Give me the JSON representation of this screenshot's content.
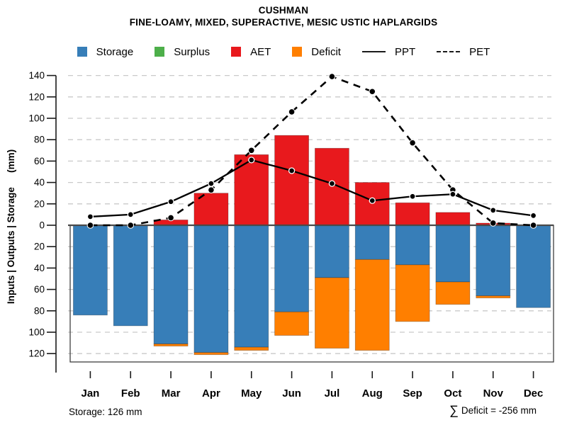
{
  "header": {
    "title": "CUSHMAN",
    "subtitle": "FINE-LOAMY, MIXED, SUPERACTIVE, MESIC USTIC HAPLARGIDS"
  },
  "legend": {
    "items": [
      {
        "label": "Storage",
        "swatch": "square",
        "color": "#377EB8"
      },
      {
        "label": "Surplus",
        "swatch": "square",
        "color": "#4DAF4A"
      },
      {
        "label": "AET",
        "swatch": "square",
        "color": "#E8191D"
      },
      {
        "label": "Deficit",
        "swatch": "square",
        "color": "#FF7F00"
      },
      {
        "label": "PPT",
        "swatch": "line-solid",
        "color": "#1A1A1A"
      },
      {
        "label": "PET",
        "swatch": "line-dashed",
        "color": "#1A1A1A"
      }
    ]
  },
  "chart_data": {
    "type": "bar",
    "subtype": "monthly-soil-water-balance (stacked bars above/below zero with PPT/PET lines)",
    "categories": [
      "Jan",
      "Feb",
      "Mar",
      "Apr",
      "May",
      "Jun",
      "Jul",
      "Aug",
      "Sep",
      "Oct",
      "Nov",
      "Dec"
    ],
    "series": [
      {
        "name": "Storage",
        "render": "bar-below-zero",
        "color": "#377EB8",
        "values": [
          84,
          94,
          111,
          119,
          114,
          81,
          49,
          32,
          37,
          53,
          66,
          77
        ]
      },
      {
        "name": "Surplus",
        "render": "bar-above-zero",
        "color": "#4DAF4A",
        "values": [
          0,
          0,
          0,
          0,
          0,
          0,
          0,
          0,
          0,
          0,
          0,
          0
        ]
      },
      {
        "name": "AET",
        "render": "bar-above-zero",
        "color": "#E8191D",
        "values": [
          0,
          0,
          5,
          30,
          66,
          84,
          72,
          40,
          21,
          12,
          2,
          0
        ]
      },
      {
        "name": "Deficit",
        "render": "bar-below-zero-stacked",
        "color": "#FF7F00",
        "values": [
          0,
          0,
          2,
          2,
          3,
          22,
          66,
          85,
          53,
          21,
          2,
          0
        ]
      },
      {
        "name": "PPT",
        "render": "line-solid",
        "color": "#000000",
        "values": [
          8,
          10,
          22,
          39,
          61,
          51,
          39,
          23,
          27,
          29,
          14,
          9
        ]
      },
      {
        "name": "PET",
        "render": "line-dashed",
        "color": "#000000",
        "values": [
          0,
          0,
          7,
          33,
          70,
          106,
          139,
          125,
          77,
          33,
          2,
          0
        ]
      }
    ],
    "title": "CUSHMAN",
    "subtitle": "FINE-LOAMY, MIXED, SUPERACTIVE, MESIC USTIC HAPLARGIDS",
    "xlabel": "",
    "ylabel": "Inputs | Outputs | Storage",
    "ylabel_unit": "(mm)",
    "y_axis": {
      "ticks_above_zero": [
        0,
        20,
        40,
        60,
        80,
        100,
        120,
        140
      ],
      "ticks_below_zero": [
        20,
        40,
        60,
        80,
        100,
        120
      ],
      "max_above_zero": 140,
      "max_below_zero": 120
    },
    "grid": "dashed-horizontal",
    "legend_position": "top",
    "annotations": {
      "storage_total": "Storage: 126 mm",
      "deficit_total": "Deficit = -256 mm"
    }
  },
  "footer": {
    "storage_note": "Storage: 126 mm",
    "sigma": "∑",
    "deficit_note": "Deficit = -256 mm"
  },
  "colors": {
    "storage": "#377EB8",
    "surplus": "#4DAF4A",
    "aet": "#E8191D",
    "deficit": "#FF7F00",
    "grid": "#C9C9C9",
    "axis": "#1A1A1A",
    "zero_line": "#4A4A4A",
    "box": "#3F3F3F",
    "text": "#000000"
  }
}
